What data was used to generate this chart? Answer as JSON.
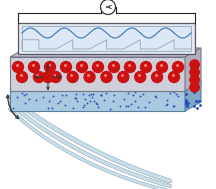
{
  "bg_color": "#ffffff",
  "wire_color": "#222222",
  "circle_color": "#333333",
  "sine_color": "#4a7fbe",
  "square_color": "#aaaabb",
  "red_dot_color": "#cc1111",
  "red_dot_highlight": "#ff7777",
  "blue_dot_color": "#2244bb",
  "composite_face_color": "#d0d0dc",
  "composite_top_color": "#c0c0cc",
  "composite_right_color": "#b0b0bc",
  "composite_edge_color": "#777788",
  "polymer_face_color": "#aac8e0",
  "polymer_top_color": "#90b8d8",
  "polymer_right_color": "#80a8c8",
  "polymer_edge_color": "#5580a0",
  "osc_outer_color": "#e0e8f0",
  "osc_outer_edge": "#555566",
  "osc_inner_color": "#dce8f5",
  "osc_inner_edge": "#8899aa",
  "strip_fill": "#c8dde8",
  "strip_edge": "#7799aa",
  "arrow_color": "#333333",
  "figsize": [
    2.16,
    1.89
  ],
  "dpi": 100
}
